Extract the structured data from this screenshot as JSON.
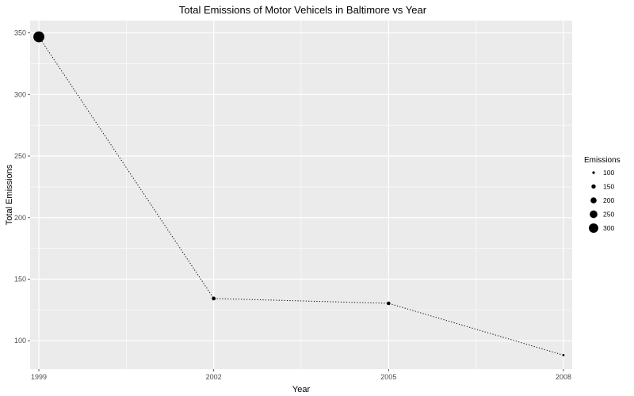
{
  "chart_data": {
    "type": "line",
    "title": "Total Emissions of Motor Vehicels in Baltimore vs Year",
    "xlabel": "Year",
    "ylabel": "Total Emissions",
    "x": [
      1999,
      2002,
      2005,
      2008
    ],
    "series": [
      {
        "values": [
          346.8,
          134.3,
          130.4,
          88.3
        ]
      }
    ],
    "point_size_by": "Emissions",
    "xticks": [
      1999,
      2002,
      2005,
      2008
    ],
    "yticks": [
      100,
      150,
      200,
      250,
      300,
      350
    ],
    "xlim": [
      1998.85,
      2008.15
    ],
    "ylim": [
      77,
      360
    ],
    "grid": true,
    "line_style": "dotted",
    "legend": {
      "title": "Emissions",
      "position": "right",
      "values": [
        100,
        150,
        200,
        250,
        300
      ],
      "labels": [
        "100",
        "150",
        "200",
        "250",
        "300"
      ]
    },
    "colors": {
      "panel_background": "#ebebeb",
      "grid": "#ffffff",
      "points": "#000000"
    }
  }
}
